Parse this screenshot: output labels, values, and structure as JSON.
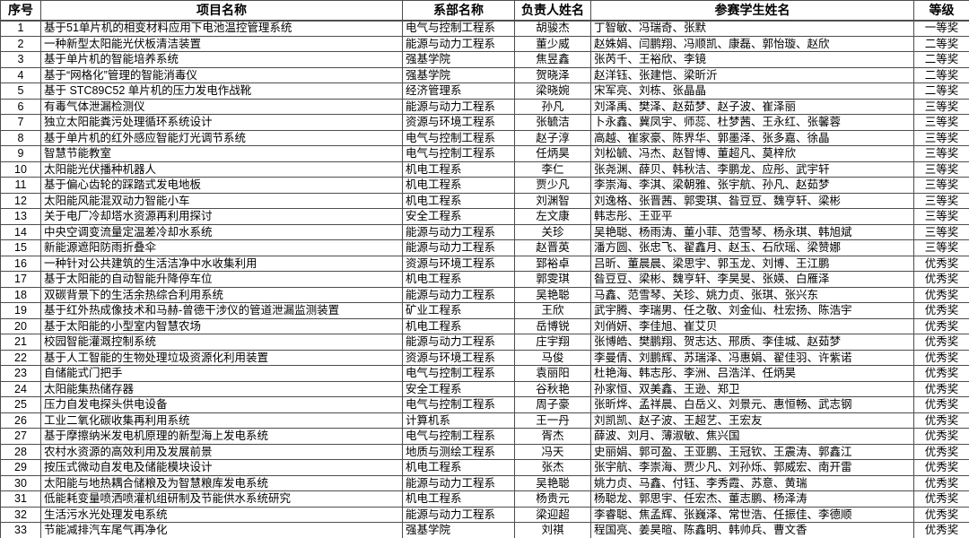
{
  "table": {
    "columns": [
      {
        "key": "no",
        "label": "序号",
        "align": "center"
      },
      {
        "key": "project",
        "label": "项目名称",
        "align": "left"
      },
      {
        "key": "dept",
        "label": "系部名称",
        "align": "left"
      },
      {
        "key": "leader",
        "label": "负责人姓名",
        "align": "center"
      },
      {
        "key": "students",
        "label": "参赛学生姓名",
        "align": "left"
      },
      {
        "key": "grade",
        "label": "等级",
        "align": "center"
      }
    ],
    "rows": [
      {
        "no": "1",
        "project": "基于51单片机的相变材料应用下电池温控管理系统",
        "dept": "电气与控制工程系",
        "leader": "胡骏杰",
        "students": "丁智敏、冯瑞奇、张默",
        "grade": "一等奖"
      },
      {
        "no": "2",
        "project": "一种新型太阳能光伏板清洁装置",
        "dept": "能源与动力工程系",
        "leader": "董少威",
        "students": "赵姝娟、闫鹏翔、冯顺凯、康磊、郭怡璇、赵欣",
        "grade": "二等奖"
      },
      {
        "no": "3",
        "project": "基于单片机的智能培养系统",
        "dept": "强基学院",
        "leader": "焦昱鑫",
        "students": "张芮千、王裕欣、李镜",
        "grade": "二等奖"
      },
      {
        "no": "4",
        "project": "基于“网格化”管理的智能消毒仪",
        "dept": "强基学院",
        "leader": "贺晓泽",
        "students": "赵洋钰、张建恺、梁昕沂",
        "grade": "二等奖"
      },
      {
        "no": "5",
        "project": "基于 STC89C52 单片机的压力发电作战靴",
        "dept": "经济管理系",
        "leader": "梁晓婉",
        "students": "宋军亮、刘栋、张晶晶",
        "grade": "二等奖"
      },
      {
        "no": "6",
        "project": "有毒气体泄漏检测仪",
        "dept": "能源与动力工程系",
        "leader": "孙凡",
        "students": "刘泽禹、樊泽、赵茹梦、赵子波、崔泽丽",
        "grade": "三等奖"
      },
      {
        "no": "7",
        "project": "独立太阳能粪污处理循环系统设计",
        "dept": "资源与环境工程系",
        "leader": "张毓洁",
        "students": "卜永鑫、冀凤宇、师蕊、杜梦茜、王永红、张馨蓉",
        "grade": "三等奖"
      },
      {
        "no": "8",
        "project": "基于单片机的红外感应智能灯光调节系统",
        "dept": "电气与控制工程系",
        "leader": "赵子淳",
        "students": "高越、崔家豪、陈界华、郭墨泽、张多嘉、徐晶",
        "grade": "三等奖"
      },
      {
        "no": "9",
        "project": "智慧节能教室",
        "dept": "电气与控制工程系",
        "leader": "任炳昊",
        "students": "刘松毓、冯杰、赵智博、董超凡、莫梓欣",
        "grade": "三等奖"
      },
      {
        "no": "10",
        "project": "太阳能光伏播种机器人",
        "dept": "机电工程系",
        "leader": "李仁",
        "students": "张尧渊、薛贝、韩秋洁、李鹏龙、应彤、武宇轩",
        "grade": "三等奖"
      },
      {
        "no": "11",
        "project": "基于偏心齿轮的踩踏式发电地板",
        "dept": "机电工程系",
        "leader": "贾少凡",
        "students": "李崇海、李淇、梁朝雅、张宇航、孙凡、赵茹梦",
        "grade": "三等奖"
      },
      {
        "no": "12",
        "project": "太阳能风能混双动力智能小车",
        "dept": "机电工程系",
        "leader": "刘渊智",
        "students": "刘逸格、张晋茜、郭雯琪、昝豆豆、魏亨轩、梁彬",
        "grade": "三等奖"
      },
      {
        "no": "13",
        "project": "关于电厂冷却塔水资源再利用探讨",
        "dept": "安全工程系",
        "leader": "左文康",
        "students": "韩志彤、王亚平",
        "grade": "三等奖"
      },
      {
        "no": "14",
        "project": "中央空调变流量定温差冷却水系统",
        "dept": "能源与动力工程系",
        "leader": "关珍",
        "students": "吴艳聪、杨雨涛、董小菲、范雪琴、杨永琪、韩旭斌",
        "grade": "三等奖"
      },
      {
        "no": "15",
        "project": "新能源遮阳防雨折叠伞",
        "dept": "能源与动力工程系",
        "leader": "赵晋英",
        "students": "潘方圆、张忠飞、翟鑫月、赵玉、石欣瑶、梁赞娜",
        "grade": "三等奖"
      },
      {
        "no": "16",
        "project": "一种针对公共建筑的生活洁净中水收集利用",
        "dept": "资源与环境工程系",
        "leader": "郅裕卓",
        "students": "吕昕、董晨晨、梁思宇、郭玉龙、刘博、王江鹏",
        "grade": "优秀奖"
      },
      {
        "no": "17",
        "project": "基于太阳能的自动智能升降停车位",
        "dept": "机电工程系",
        "leader": "郭雯琪",
        "students": "昝豆豆、梁彬、魏亨轩、李昊旻、张媖、白雁泽",
        "grade": "优秀奖"
      },
      {
        "no": "18",
        "project": "双碳背景下的生活余热综合利用系统",
        "dept": "能源与动力工程系",
        "leader": "吴艳聪",
        "students": "马鑫、范雪琴、关珍、姚力贞、张琪、张兴东",
        "grade": "优秀奖"
      },
      {
        "no": "19",
        "project": "基于红外热成像技术和马赫-曾德干涉仪的管道泄漏监测装置",
        "dept": "矿业工程系",
        "leader": "王欣",
        "students": "武宇腾、李瑞男、任之敬、刘金仙、杜宏扬、陈浩宇",
        "grade": "优秀奖"
      },
      {
        "no": "20",
        "project": "基于太阳能的小型室内智慧农场",
        "dept": "机电工程系",
        "leader": "岳博锐",
        "students": "刘俏妍、李佳旭、崔艾贝",
        "grade": "优秀奖"
      },
      {
        "no": "21",
        "project": "校园智能灌溉控制系统",
        "dept": "能源与动力工程系",
        "leader": "庄宇翔",
        "students": "张博皓、樊鹏翔、贺志达、邢质、李佳城、赵茹梦",
        "grade": "优秀奖"
      },
      {
        "no": "22",
        "project": "基于人工智能的生物处理垃圾资源化利用装置",
        "dept": "资源与环境工程系",
        "leader": "马俊",
        "students": "李曼倩、刘鹏辉、苏瑞泽、冯惠娟、翟佳羽、许紫诺",
        "grade": "优秀奖"
      },
      {
        "no": "23",
        "project": "自储能式门把手",
        "dept": "电气与控制工程系",
        "leader": "袁丽阳",
        "students": "杜艳海、韩志彤、李洲、吕浩洋、任炳昊",
        "grade": "优秀奖"
      },
      {
        "no": "24",
        "project": "太阳能集热储存器",
        "dept": "安全工程系",
        "leader": "谷秋艳",
        "students": "孙家恒、双美鑫、王逊、郑卫",
        "grade": "优秀奖"
      },
      {
        "no": "25",
        "project": "压力自发电探头供电设备",
        "dept": "电气与控制工程系",
        "leader": "周子豪",
        "students": "张昕烨、孟祥晨、白岳义、刘景元、惠恒畅、武志钢",
        "grade": "优秀奖"
      },
      {
        "no": "26",
        "project": "工业二氧化碳收集再利用系统",
        "dept": "计算机系",
        "leader": "王一丹",
        "students": "刘凯凯、赵子波、王超艺、王宏友",
        "grade": "优秀奖"
      },
      {
        "no": "27",
        "project": "基于摩擦纳米发电机原理的新型海上发电系统",
        "dept": "电气与控制工程系",
        "leader": "胥杰",
        "students": "薛波、刘月、薄淑敏、焦兴国",
        "grade": "优秀奖"
      },
      {
        "no": "28",
        "project": "农村水资源的高效利用及发展前景",
        "dept": "地质与测绘工程系",
        "leader": "冯天",
        "students": "史丽娟、郭可盈、王亚鹏、王冠钦、王震涛、郭鑫江",
        "grade": "优秀奖"
      },
      {
        "no": "29",
        "project": "按压式微动自发电及储能模块设计",
        "dept": "机电工程系",
        "leader": "张杰",
        "students": "张宇航、李崇海、贾少凡、刘孙烁、郭威宏、南开雷",
        "grade": "优秀奖"
      },
      {
        "no": "30",
        "project": "太阳能与地热耦合储粮及为智慧粮库发电系统",
        "dept": "能源与动力工程系",
        "leader": "吴艳聪",
        "students": "姚力贞、马鑫、付钰、李秀霞、苏意、黄瑞",
        "grade": "优秀奖"
      },
      {
        "no": "31",
        "project": "低能耗变量喷洒喷灌机组研制及节能供水系统研究",
        "dept": "机电工程系",
        "leader": "杨贵元",
        "students": "杨聪龙、郭思宇、任宏杰、董志鹏、杨泽涛",
        "grade": "优秀奖"
      },
      {
        "no": "32",
        "project": "生活污水光处理发电系统",
        "dept": "能源与动力工程系",
        "leader": "梁迎超",
        "students": "李睿聪、焦孟辉、张巍泽、常世浩、任振佳、李德顺",
        "grade": "优秀奖"
      },
      {
        "no": "33",
        "project": "节能减排汽车尾气再净化",
        "dept": "强基学院",
        "leader": "刘祺",
        "students": "程国亮、姜昊暄、陈鑫明、韩帅兵、曹文香",
        "grade": "优秀奖"
      }
    ]
  },
  "colors": {
    "border": "#4d4d4d",
    "background": "#ffffff",
    "text": "#000000"
  }
}
